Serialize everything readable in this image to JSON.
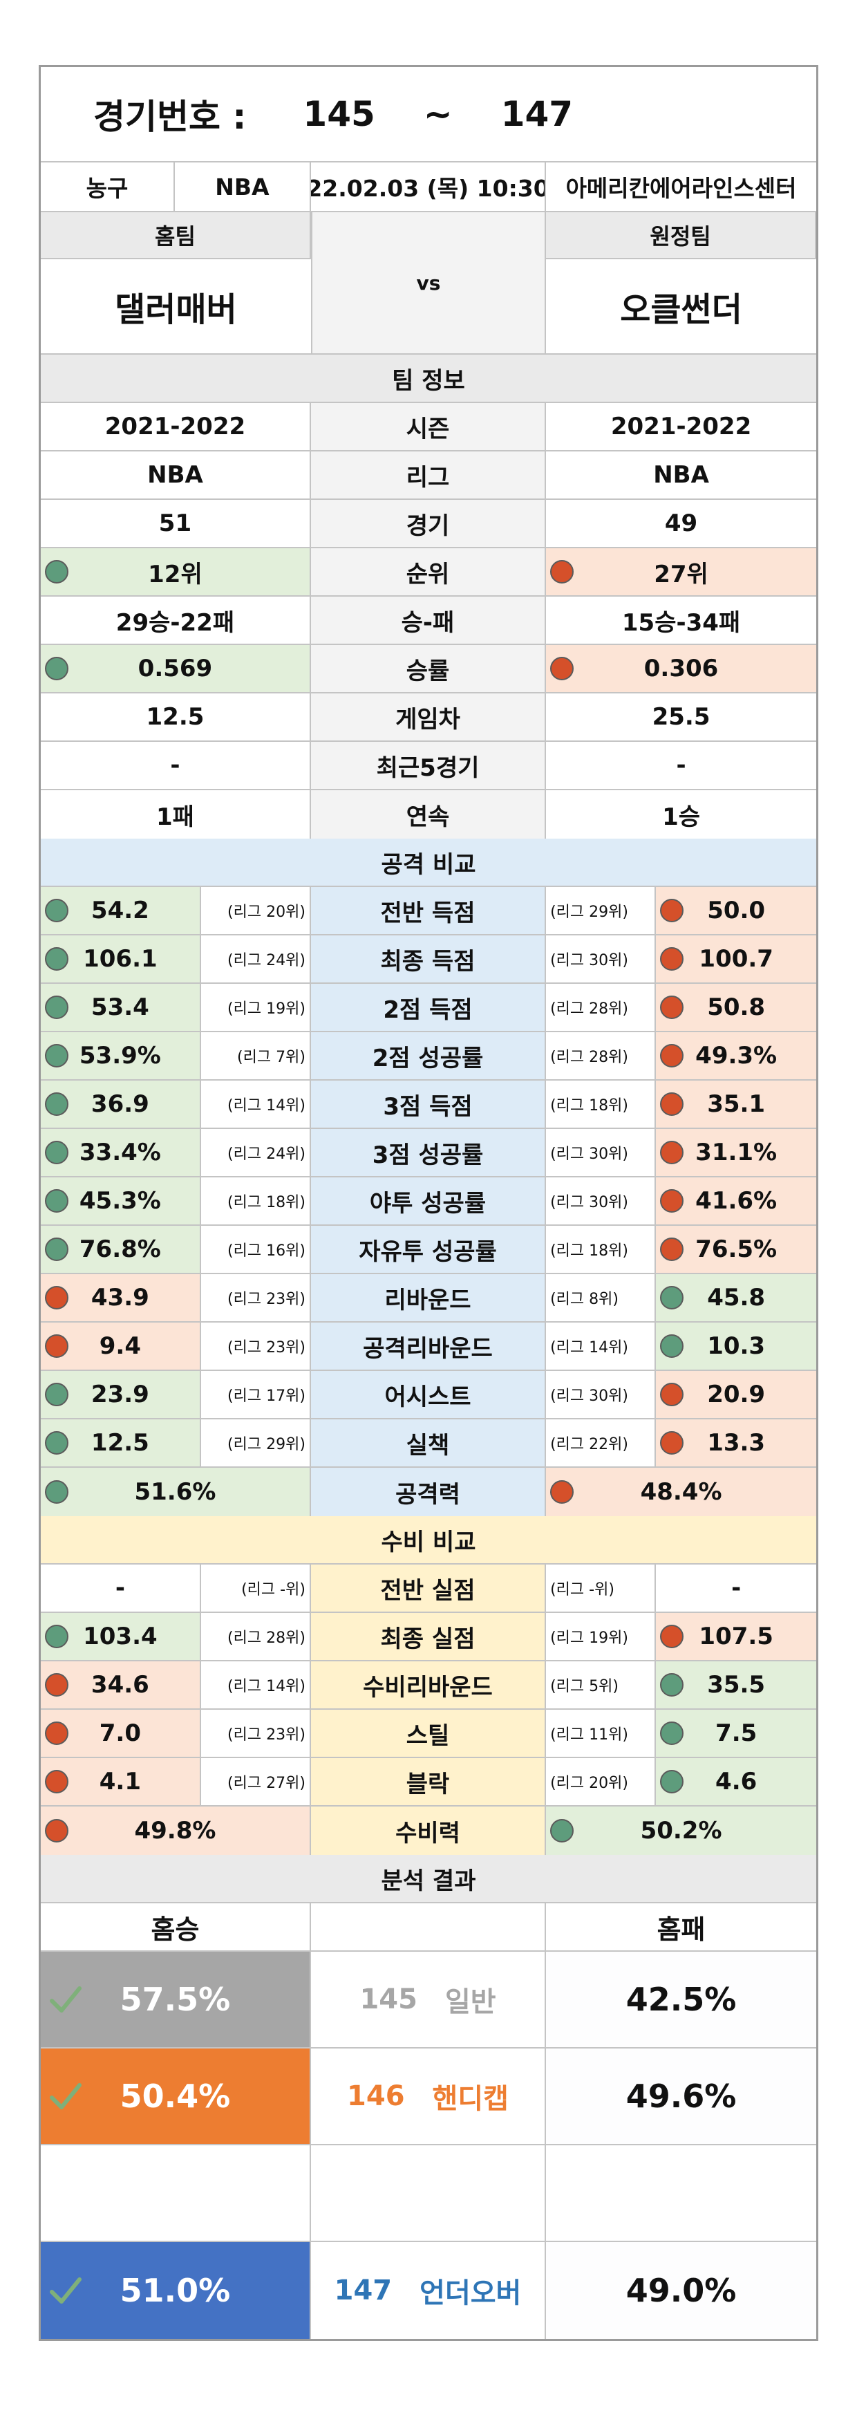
{
  "header": {
    "title_label": "경기번호 :",
    "start_no": "145",
    "tilde": "~",
    "end_no": "147"
  },
  "match_info": {
    "sport": "농구",
    "league": "NBA",
    "datetime": "22.02.03 (목) 10:30",
    "venue": "아메리칸에어라인스센터"
  },
  "teams": {
    "home_label": "홈팀",
    "away_label": "원정팀",
    "vs": "vs",
    "home_name": "댈러매버",
    "away_name": "오클썬더"
  },
  "colors": {
    "good": "#5e9c7c",
    "bad": "#d5502a",
    "good_bg": "#e2efda",
    "bad_bg": "#fce4d6",
    "general": "#a6a6a6",
    "handicap": "#ed7d31",
    "underover": "#4472c4"
  },
  "team_info": {
    "title": "팀 정보",
    "rows": [
      {
        "label": "시즌",
        "home": "2021-2022",
        "away": "2021-2022"
      },
      {
        "label": "리그",
        "home": "NBA",
        "away": "NBA"
      },
      {
        "label": "경기",
        "home": "51",
        "away": "49"
      },
      {
        "label": "순위",
        "home": "12위",
        "away": "27위",
        "home_status": "good",
        "away_status": "bad"
      },
      {
        "label": "승-패",
        "home": "29승-22패",
        "away": "15승-34패"
      },
      {
        "label": "승률",
        "home": "0.569",
        "away": "0.306",
        "home_status": "good",
        "away_status": "bad"
      },
      {
        "label": "게임차",
        "home": "12.5",
        "away": "25.5"
      },
      {
        "label": "최근5경기",
        "home": "-",
        "away": "-"
      },
      {
        "label": "연속",
        "home": "1패",
        "away": "1승"
      }
    ]
  },
  "offense": {
    "title": "공격 비교",
    "rows": [
      {
        "label": "전반 득점",
        "home": "54.2",
        "home_rank": "(리그 20위)",
        "away": "50.0",
        "away_rank": "(리그 29위)",
        "home_status": "good",
        "away_status": "bad"
      },
      {
        "label": "최종 득점",
        "home": "106.1",
        "home_rank": "(리그 24위)",
        "away": "100.7",
        "away_rank": "(리그 30위)",
        "home_status": "good",
        "away_status": "bad"
      },
      {
        "label": "2점 득점",
        "home": "53.4",
        "home_rank": "(리그 19위)",
        "away": "50.8",
        "away_rank": "(리그 28위)",
        "home_status": "good",
        "away_status": "bad"
      },
      {
        "label": "2점 성공률",
        "home": "53.9%",
        "home_rank": "(리그 7위)",
        "away": "49.3%",
        "away_rank": "(리그 28위)",
        "home_status": "good",
        "away_status": "bad"
      },
      {
        "label": "3점 득점",
        "home": "36.9",
        "home_rank": "(리그 14위)",
        "away": "35.1",
        "away_rank": "(리그 18위)",
        "home_status": "good",
        "away_status": "bad"
      },
      {
        "label": "3점 성공률",
        "home": "33.4%",
        "home_rank": "(리그 24위)",
        "away": "31.1%",
        "away_rank": "(리그 30위)",
        "home_status": "good",
        "away_status": "bad"
      },
      {
        "label": "야투 성공률",
        "home": "45.3%",
        "home_rank": "(리그 18위)",
        "away": "41.6%",
        "away_rank": "(리그 30위)",
        "home_status": "good",
        "away_status": "bad"
      },
      {
        "label": "자유투 성공률",
        "home": "76.8%",
        "home_rank": "(리그 16위)",
        "away": "76.5%",
        "away_rank": "(리그 18위)",
        "home_status": "good",
        "away_status": "bad"
      },
      {
        "label": "리바운드",
        "home": "43.9",
        "home_rank": "(리그 23위)",
        "away": "45.8",
        "away_rank": "(리그 8위)",
        "home_status": "bad",
        "away_status": "good"
      },
      {
        "label": "공격리바운드",
        "home": "9.4",
        "home_rank": "(리그 23위)",
        "away": "10.3",
        "away_rank": "(리그 14위)",
        "home_status": "bad",
        "away_status": "good"
      },
      {
        "label": "어시스트",
        "home": "23.9",
        "home_rank": "(리그 17위)",
        "away": "20.9",
        "away_rank": "(리그 30위)",
        "home_status": "good",
        "away_status": "bad"
      },
      {
        "label": "실책",
        "home": "12.5",
        "home_rank": "(리그 29위)",
        "away": "13.3",
        "away_rank": "(리그 22위)",
        "home_status": "good",
        "away_status": "bad"
      }
    ],
    "power": {
      "label": "공격력",
      "home": "51.6%",
      "away": "48.4%",
      "home_status": "good",
      "away_status": "bad"
    }
  },
  "defense": {
    "title": "수비 비교",
    "rows": [
      {
        "label": "전반 실점",
        "home": "-",
        "home_rank": "(리그 -위)",
        "away": "-",
        "away_rank": "(리그 -위)"
      },
      {
        "label": "최종 실점",
        "home": "103.4",
        "home_rank": "(리그 28위)",
        "away": "107.5",
        "away_rank": "(리그 19위)",
        "home_status": "good",
        "away_status": "bad"
      },
      {
        "label": "수비리바운드",
        "home": "34.6",
        "home_rank": "(리그 14위)",
        "away": "35.5",
        "away_rank": "(리그 5위)",
        "home_status": "bad",
        "away_status": "good"
      },
      {
        "label": "스틸",
        "home": "7.0",
        "home_rank": "(리그 23위)",
        "away": "7.5",
        "away_rank": "(리그 11위)",
        "home_status": "bad",
        "away_status": "good"
      },
      {
        "label": "블락",
        "home": "4.1",
        "home_rank": "(리그 27위)",
        "away": "4.6",
        "away_rank": "(리그 20위)",
        "home_status": "bad",
        "away_status": "good"
      }
    ],
    "power": {
      "label": "수비력",
      "home": "49.8%",
      "away": "50.2%",
      "home_status": "bad",
      "away_status": "good"
    }
  },
  "analysis": {
    "title": "분석 결과",
    "home_header": "홈승",
    "away_header": "홈패",
    "rows": [
      {
        "home": "57.5%",
        "no": "145",
        "type": "일반",
        "away": "42.5%",
        "theme": "gray"
      },
      {
        "home": "50.4%",
        "no": "146",
        "type": "핸디캡",
        "away": "49.6%",
        "theme": "orange"
      },
      {
        "home": "51.0%",
        "no": "147",
        "type": "언더오버",
        "away": "49.0%",
        "theme": "blue"
      }
    ]
  }
}
